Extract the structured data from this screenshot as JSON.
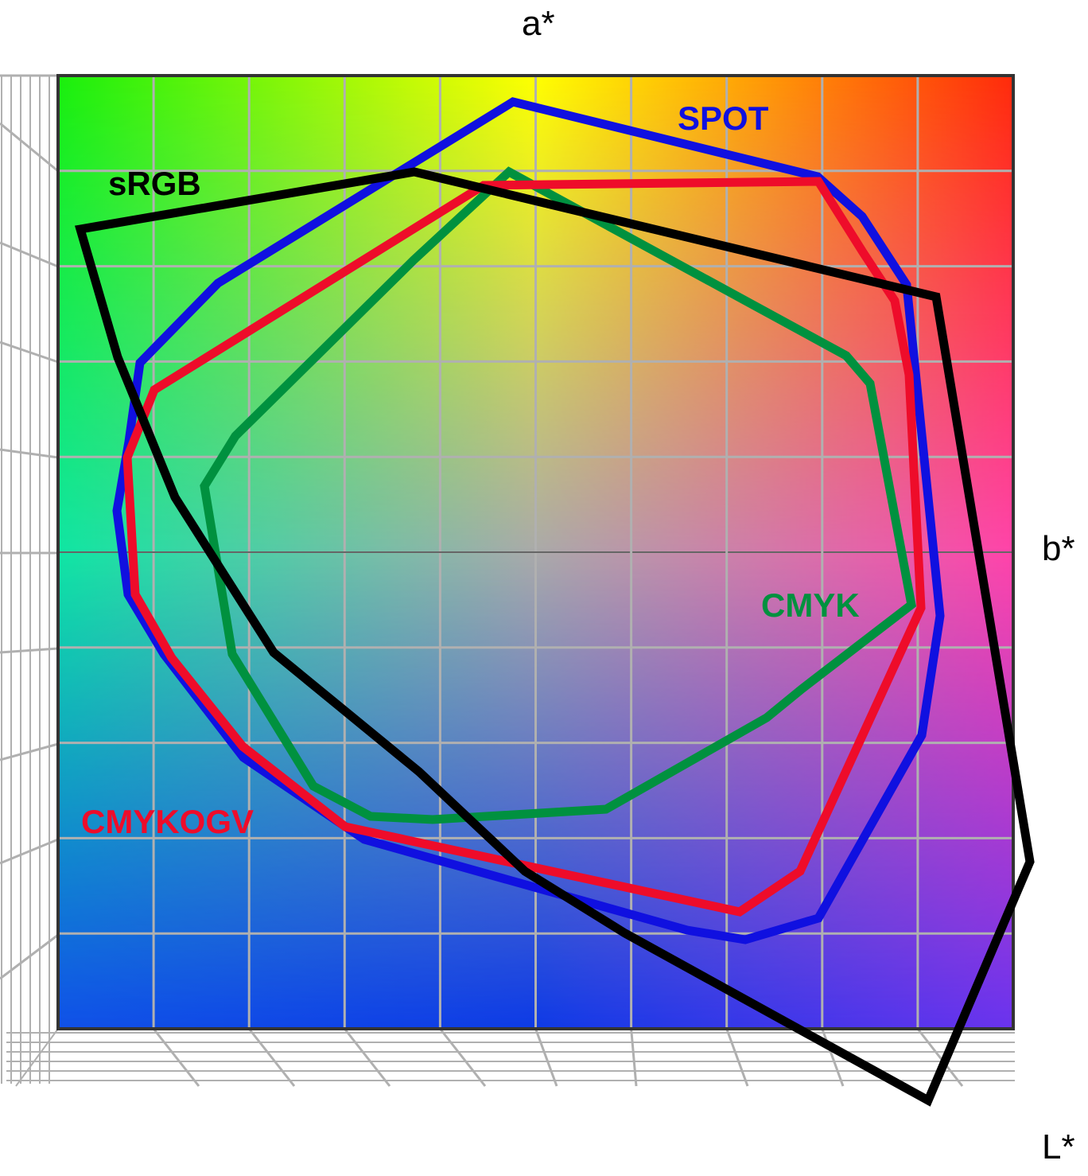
{
  "axes": {
    "a_label": "a*",
    "b_label": "b*",
    "l_label": "L*"
  },
  "gamuts": [
    {
      "id": "spot",
      "label": "SPOT",
      "color": "#1010e0"
    },
    {
      "id": "srgb",
      "label": "sRGB",
      "color": "#000000"
    },
    {
      "id": "cmyk",
      "label": "CMYK",
      "color": "#00913f"
    },
    {
      "id": "cmykogv",
      "label": "CMYKOGV",
      "color": "#ee0c2a"
    }
  ],
  "background": {
    "corner_colors": {
      "top_left": "#1aef0c",
      "top_center": "#ffff00",
      "top_right": "#ff2a0a",
      "right_middle": "#ff44aa",
      "bottom_right": "#6a33ee",
      "bottom_center": "#0d3ae6",
      "bottom_left": "#1050e8",
      "left_middle": "#10e6a4",
      "center": "#aaaaaa"
    },
    "grid_color": "#b0b0b0"
  }
}
